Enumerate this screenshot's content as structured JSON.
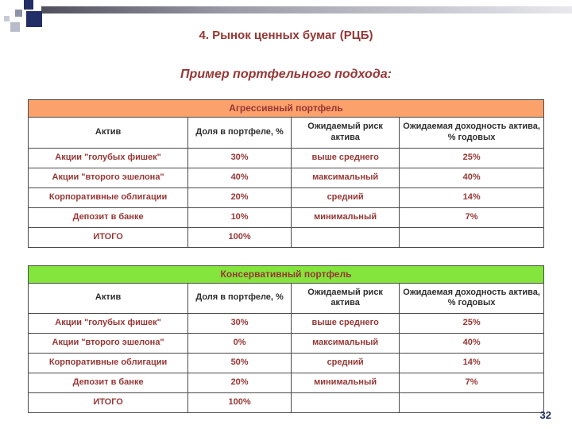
{
  "slide": {
    "title": "4. Рынок ценных бумаг (РЦБ)",
    "subtitle": "Пример портфельного подхода:",
    "page_number": "32"
  },
  "colors": {
    "accent_text": "#953735",
    "aggressive_header_bg": "#FBA16C",
    "conservative_header_bg": "#84E53C",
    "decor_navy": "#232D66",
    "decor_gray": "#B9BCC9",
    "table_border": "#4A4A4A"
  },
  "tables": [
    {
      "title": "Агрессивный портфель",
      "header_bg": "#FBA16C",
      "columns": [
        "Актив",
        "Доля в портфеле, %",
        "Ожидаемый риск актива",
        "Ожидаемая доходность актива, % годовых"
      ],
      "rows": [
        [
          "Акции \"голубых фишек\"",
          "30%",
          "выше среднего",
          "25%"
        ],
        [
          "Акции \"второго эшелона\"",
          "40%",
          "максимальный",
          "40%"
        ],
        [
          "Корпоративные облигации",
          "20%",
          "средний",
          "14%"
        ],
        [
          "Депозит в банке",
          "10%",
          "минимальный",
          "7%"
        ],
        [
          "ИТОГО",
          "100%",
          "",
          ""
        ]
      ]
    },
    {
      "title": "Консервативный портфель",
      "header_bg": "#84E53C",
      "columns": [
        "Актив",
        "Доля в портфеле, %",
        "Ожидаемый риск актива",
        "Ожидаемая доходность актива, % годовых"
      ],
      "rows": [
        [
          "Акции \"голубых фишек\"",
          "30%",
          "выше среднего",
          "25%"
        ],
        [
          "Акции \"второго эшелона\"",
          "0%",
          "максимальный",
          "40%"
        ],
        [
          "Корпоративные облигации",
          "50%",
          "средний",
          "14%"
        ],
        [
          "Депозит в банке",
          "20%",
          "минимальный",
          "7%"
        ],
        [
          "ИТОГО",
          "100%",
          "",
          ""
        ]
      ]
    }
  ]
}
